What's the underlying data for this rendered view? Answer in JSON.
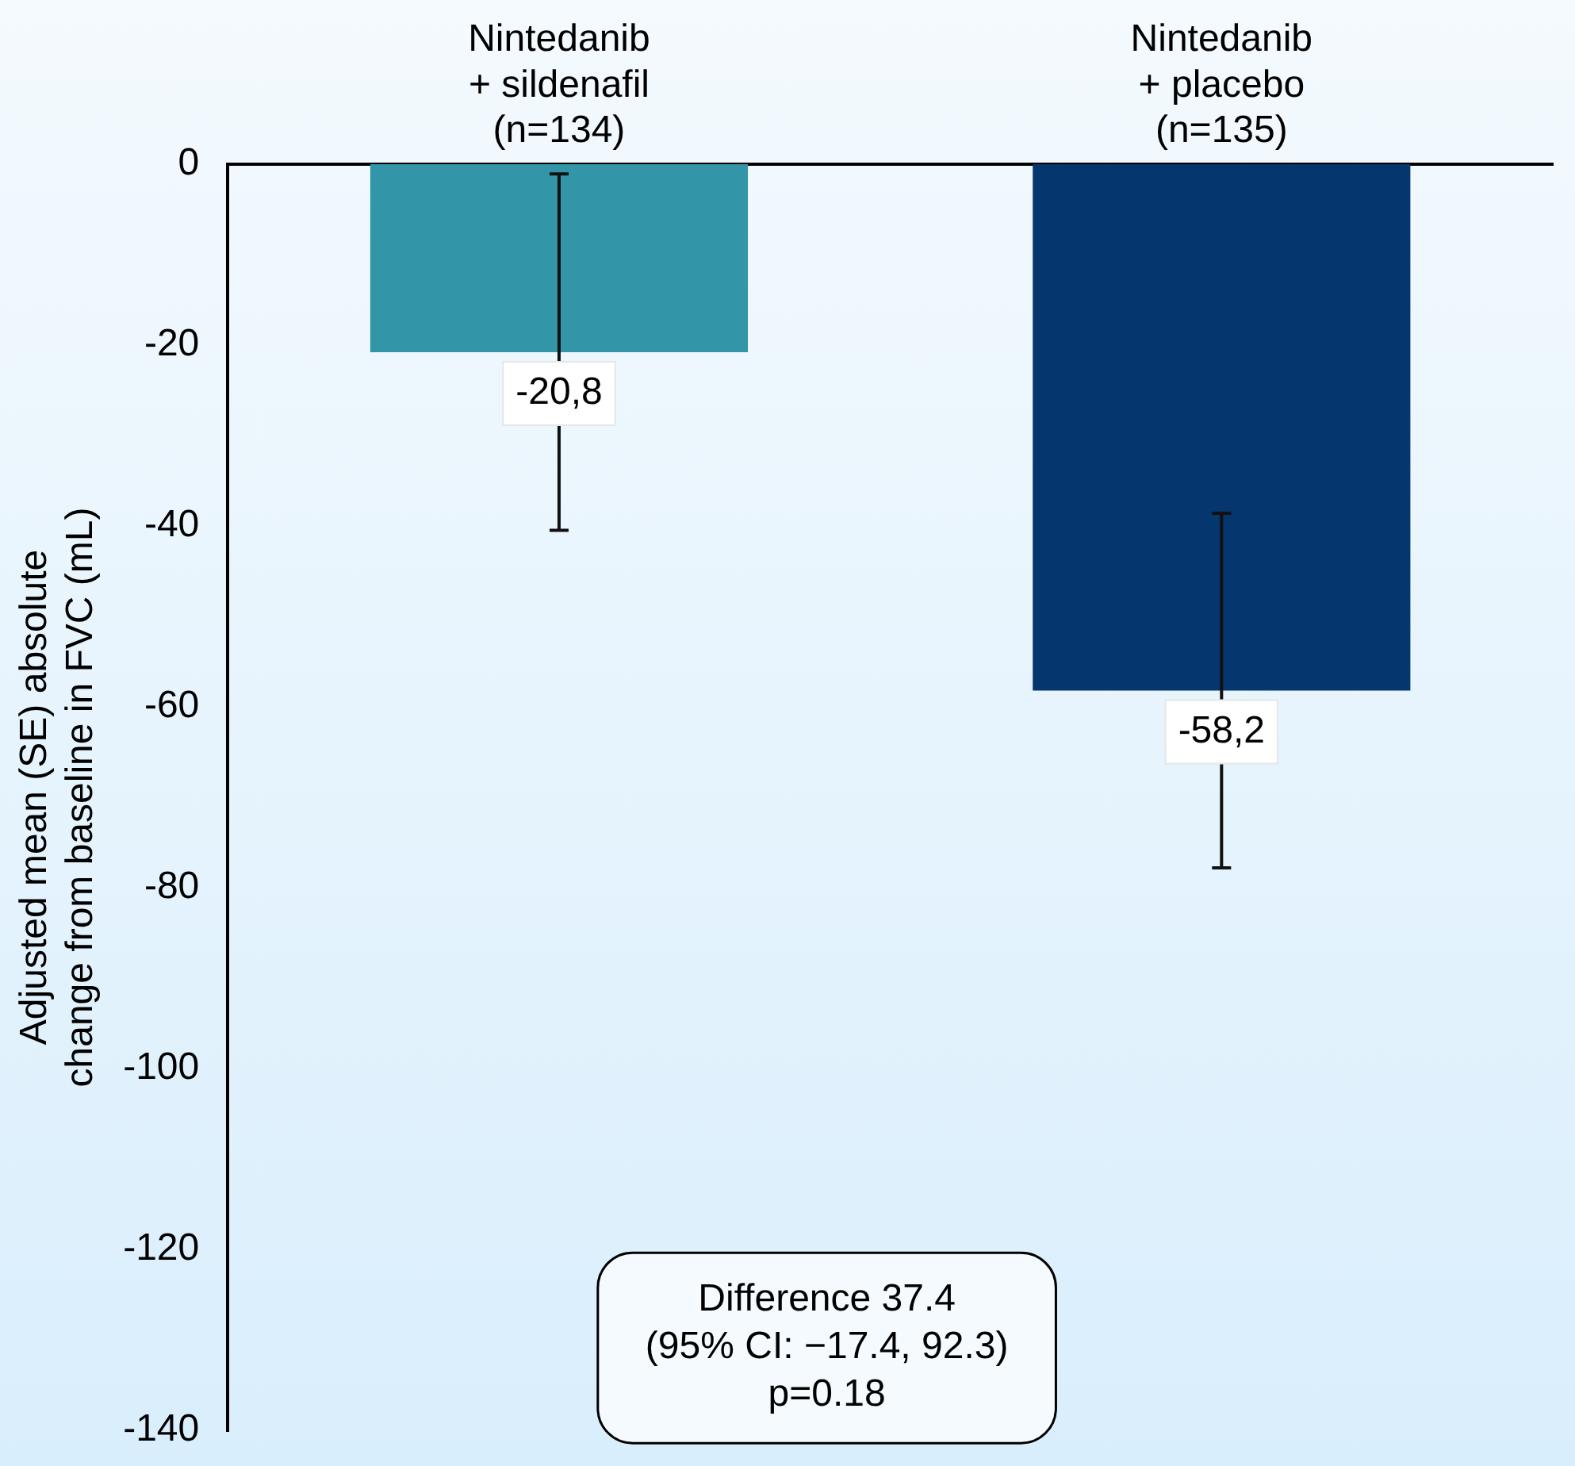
{
  "chart_data": {
    "type": "bar",
    "ylabel": "Adjusted mean (SE) absolute\nchange from baseline in FVC (mL)",
    "categories": [
      "Nintedanib\n+ sildenafil\n(n=134)",
      "Nintedanib\n+ placebo\n(n=135)"
    ],
    "values": [
      -20.8,
      -58.2
    ],
    "colors": [
      "#3396a8",
      "#06366e"
    ],
    "errors": [
      19.7,
      19.6
    ],
    "value_labels": [
      "-20,8",
      "-58,2"
    ],
    "ylim": [
      -140,
      0
    ],
    "yticks": [
      0,
      -20,
      -40,
      -60,
      -80,
      -100,
      -120,
      -140
    ],
    "grid": false,
    "legend": false,
    "annotations": [
      "Difference 37.4\n(95% CI: −17.4, 92.3)\np=0.18"
    ]
  }
}
